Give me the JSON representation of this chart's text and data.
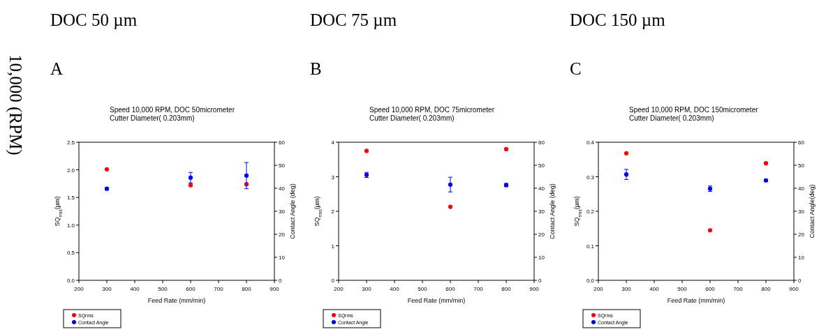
{
  "chart_data": [
    {
      "type": "scatter",
      "title": "Speed 10,000 RPM, DOC 50micrometer",
      "subtitle": "Cutter Diameter( 0.203mm)",
      "xlabel": "Feed Rate (mm/min)",
      "ylabel": "SQ$_{rms}$(µm)",
      "y2label": "Contact Angle (deg)",
      "annotations": [
        "DOC 50 µm",
        "A",
        "10,000 (RPM)"
      ],
      "x": [
        300,
        600,
        800
      ],
      "xlim": [
        200,
        900
      ],
      "xticks": [
        200,
        300,
        400,
        500,
        600,
        700,
        800,
        900
      ],
      "ylim": [
        0,
        2.5
      ],
      "yticks": [
        {
          "value": 0,
          "label": "0.0"
        },
        0.5,
        {
          "value": 1,
          "label": "1.0"
        },
        1.5,
        {
          "value": 2,
          "label": "2.0"
        },
        2.5
      ],
      "y2lim": [
        0,
        60
      ],
      "y2ticks": [
        0,
        10,
        20,
        30,
        40,
        50,
        60
      ],
      "marker": "circle",
      "legend": "bottom left",
      "series": [
        {
          "name": "SQrms",
          "color": "#ff0000",
          "values": [
            2.01,
            1.72,
            1.74
          ]
        },
        {
          "name": "Contact Angle",
          "color": "#0000ff",
          "axis": "y2",
          "values": [
            39.8,
            44.6,
            45.5
          ],
          "errors": [
            0.5,
            2.3,
            5.7
          ]
        }
      ]
    },
    {
      "type": "scatter",
      "title": "Speed 10,000 RPM, DOC 75micrometer",
      "subtitle": "Cutter Diameter( 0.203mm)",
      "xlabel": "Feed Rate (mm/min)",
      "ylabel": "SQ$_{rms}$(µm)",
      "y2label": "Contact Angle (deg)",
      "annotations": [
        "DOC 75 µm",
        "B"
      ],
      "x": [
        300,
        600,
        800
      ],
      "xlim": [
        200,
        900
      ],
      "xticks": [
        200,
        300,
        400,
        500,
        600,
        700,
        800,
        900
      ],
      "ylim": [
        0,
        4
      ],
      "yticks": [
        0,
        1,
        2,
        3,
        4
      ],
      "y2lim": [
        0,
        60
      ],
      "y2ticks": [
        0,
        10,
        20,
        30,
        40,
        50,
        60
      ],
      "marker": "circle",
      "legend": "bottom left",
      "series": [
        {
          "name": "SQrms",
          "color": "#ff0000",
          "values": [
            3.75,
            2.13,
            3.8
          ]
        },
        {
          "name": "Contact Angle",
          "color": "#0000ff",
          "axis": "y2",
          "values": [
            45.8,
            41.6,
            41.4
          ],
          "errors": [
            1.1,
            3.2,
            0.7
          ]
        }
      ]
    },
    {
      "type": "scatter",
      "title": "Speed 10,000 RPM, DOC 150micrometer",
      "subtitle": "Cutter Diameter( 0.203mm)",
      "xlabel": "Feed Rate (mm/min)",
      "ylabel": "SQ$_{rms}$(µm)",
      "y2label": "Contact Angle(deg)",
      "annotations": [
        "DOC 150 µm",
        "C"
      ],
      "x": [
        300,
        600,
        800
      ],
      "xlim": [
        200,
        900
      ],
      "xticks": [
        200,
        300,
        400,
        500,
        600,
        700,
        800,
        900
      ],
      "ylim": [
        0,
        0.4
      ],
      "yticks": [
        {
          "value": 0,
          "label": "0.0"
        },
        0.1,
        0.2,
        0.3,
        0.4
      ],
      "y2lim": [
        0,
        60
      ],
      "y2ticks": [
        0,
        10,
        20,
        30,
        40,
        50,
        60
      ],
      "marker": "circle",
      "legend": "bottom left",
      "series": [
        {
          "name": "SQrms",
          "color": "#ff0000",
          "values": [
            0.368,
            0.145,
            0.339
          ]
        },
        {
          "name": "Contact Angle",
          "color": "#0000ff",
          "axis": "y2",
          "values": [
            46.0,
            39.8,
            43.4
          ],
          "errors": [
            2.2,
            1.2,
            0.5
          ]
        }
      ]
    }
  ]
}
